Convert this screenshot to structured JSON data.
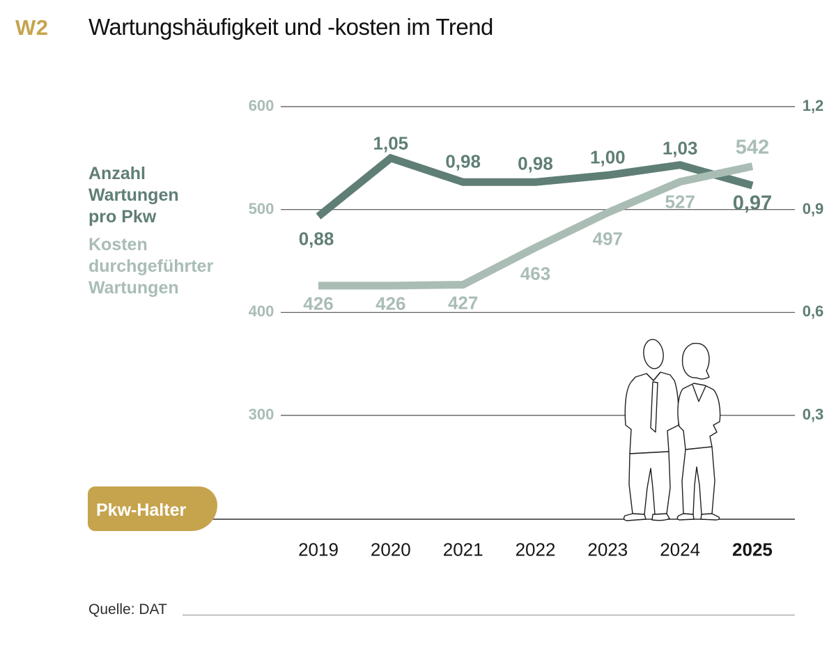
{
  "header": {
    "tag": "W2",
    "title": "Wartungshäufigkeit und -kosten im Trend"
  },
  "legend": {
    "series1_label": "Anzahl\nWartungen\npro Pkw",
    "series2_label": "Kosten\ndurchgeführter\nWartungen"
  },
  "badge": {
    "label": "Pkw-Halter"
  },
  "footer": {
    "source": "Quelle: DAT"
  },
  "colors": {
    "accent_gold": "#c6a44e",
    "series1": "#5f7e76",
    "series2": "#a9bdb4",
    "gridline": "#4d4d4d",
    "title_ink": "#111111"
  },
  "chart_data": {
    "type": "line",
    "title": "Wartungshäufigkeit und -kosten im Trend",
    "categories": [
      "2019",
      "2020",
      "2021",
      "2022",
      "2023",
      "2024",
      "2025"
    ],
    "highlight_category": "2025",
    "grid": "horizontal-only",
    "legend_position": "left",
    "series": [
      {
        "name": "Anzahl Wartungen pro Pkw",
        "axis": "right",
        "color": "#5f7e76",
        "values": [
          0.88,
          1.05,
          0.98,
          0.98,
          1.0,
          1.03,
          0.97
        ],
        "labels": [
          "0,88",
          "1,05",
          "0,98",
          "0,98",
          "1,00",
          "1,03",
          "0,97"
        ]
      },
      {
        "name": "Kosten durchgeführter Wartungen",
        "axis": "left",
        "color": "#a9bdb4",
        "values": [
          426,
          426,
          427,
          463,
          497,
          527,
          542
        ],
        "labels": [
          "426",
          "426",
          "427",
          "463",
          "497",
          "527",
          "542"
        ]
      }
    ],
    "left_axis": {
      "range": [
        300,
        600
      ],
      "ticks": [
        "600",
        "500",
        "400",
        "300"
      ]
    },
    "right_axis": {
      "range": [
        0.3,
        1.2
      ],
      "ticks": [
        "1,2",
        "0,9",
        "0,6",
        "0,3"
      ]
    },
    "baseline_label": "Pkw-Halter"
  }
}
